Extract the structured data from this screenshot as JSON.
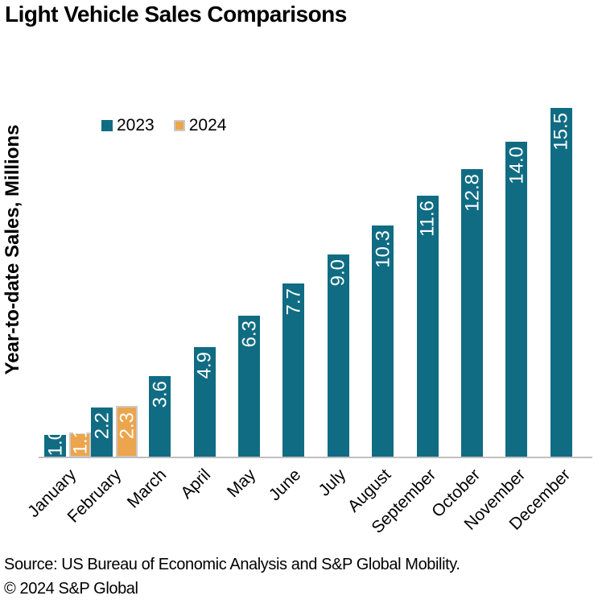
{
  "title": "Light Vehicle Sales Comparisons",
  "y_axis_label": "Year-to-date Sales, Millions",
  "legend": {
    "items": [
      {
        "label": "2023",
        "color": "#106C83",
        "border": null
      },
      {
        "label": "2024",
        "color": "#ECA54C",
        "border": "#C9C9C9"
      }
    ]
  },
  "footer": {
    "source": "Source: US Bureau of Economic Analysis and S&P Global Mobility.",
    "copyright": "© 2024 S&P Global"
  },
  "chart_data": {
    "type": "bar",
    "title": "Light Vehicle Sales Comparisons",
    "xlabel": "",
    "ylabel": "Year-to-date Sales, Millions",
    "categories": [
      "January",
      "February",
      "March",
      "April",
      "May",
      "June",
      "July",
      "August",
      "September",
      "October",
      "November",
      "December"
    ],
    "series": [
      {
        "name": "2023",
        "color": "#106C83",
        "values": [
          1.0,
          2.2,
          3.6,
          4.9,
          6.3,
          7.7,
          9.0,
          10.3,
          11.6,
          12.8,
          14.0,
          15.5
        ]
      },
      {
        "name": "2024",
        "color": "#ECA54C",
        "border_color": "#C9C9C9",
        "values": [
          1.1,
          2.3,
          null,
          null,
          null,
          null,
          null,
          null,
          null,
          null,
          null,
          null
        ]
      }
    ],
    "value_label_format": "one_decimal",
    "value_label_color": "#FFFFFF",
    "value_label_rotation": -90,
    "ylim": [
      0,
      16.7
    ],
    "grid": false,
    "legend_position": "top-left",
    "axis_line_color": "#BFBFBF",
    "x_tick_rotation": -45
  }
}
